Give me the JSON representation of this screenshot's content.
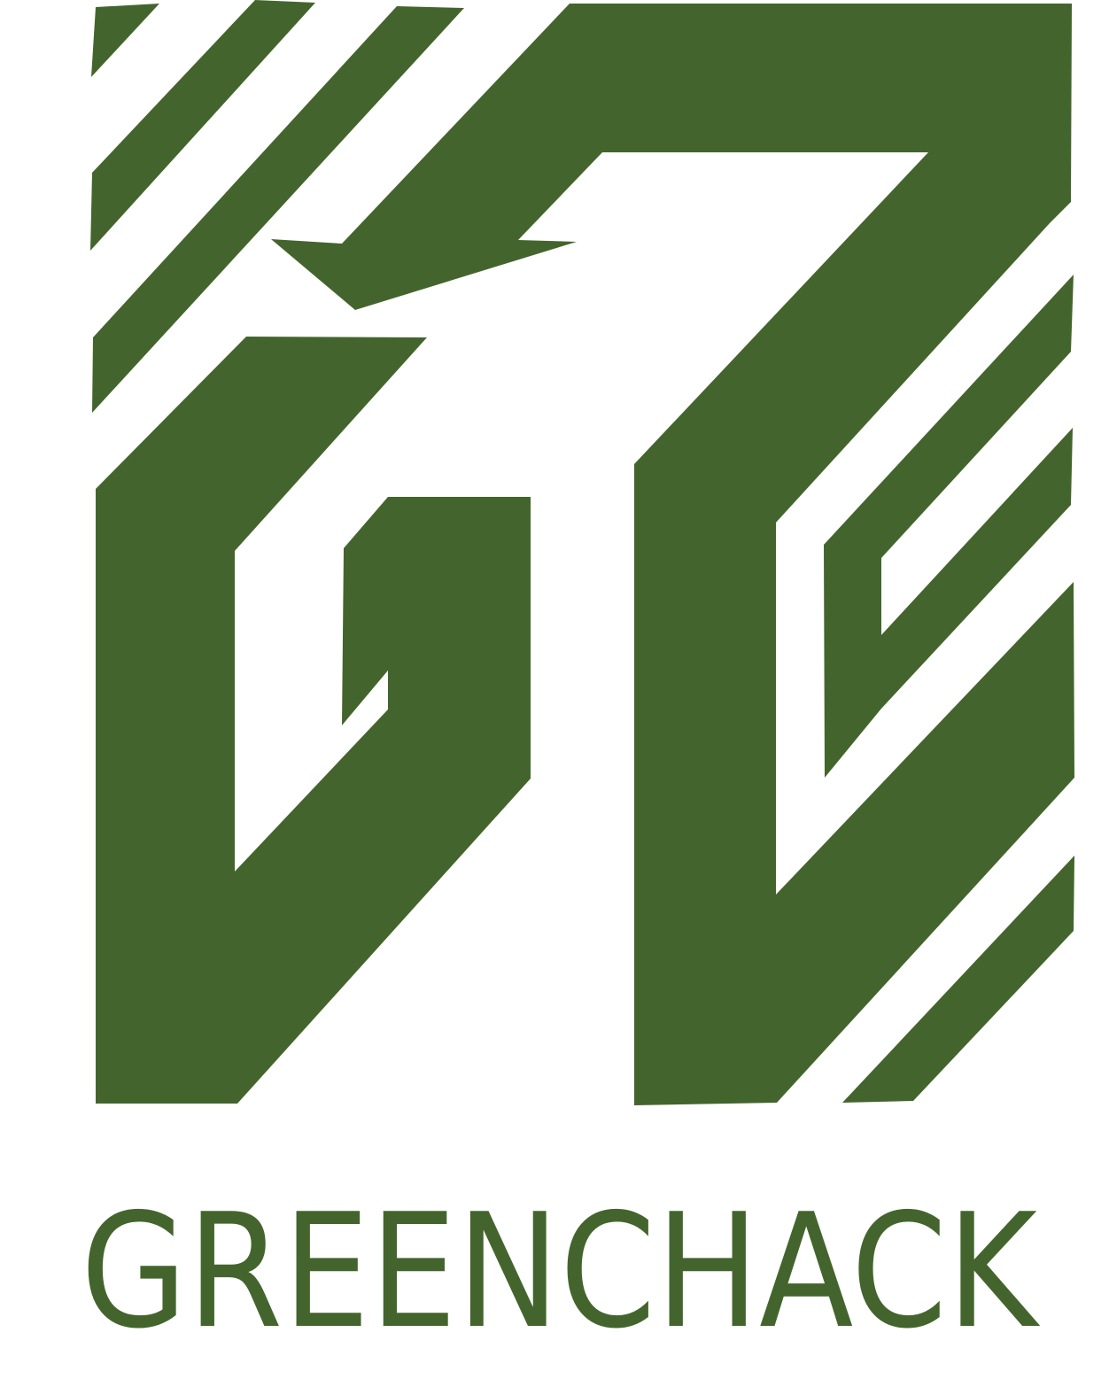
{
  "brand": {
    "name": "GREENCHACK",
    "color": "#43652D",
    "background": "#FFFFFF"
  },
  "logo": {
    "icon": "gc-monogram-icon"
  }
}
